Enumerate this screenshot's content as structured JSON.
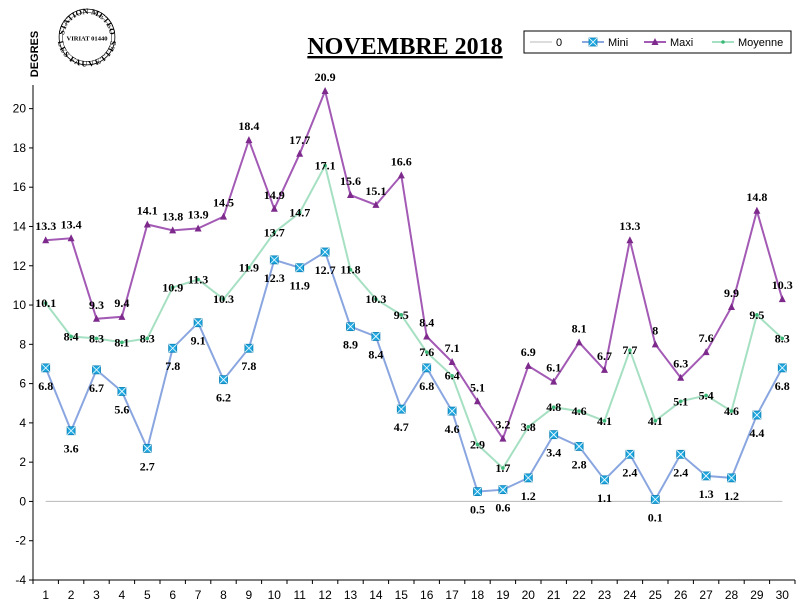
{
  "stamp": {
    "ring_top": "STATION METEO",
    "center": "VIRIAT 01440",
    "ring_bottom": "LES FAUVETTES"
  },
  "chart_data": {
    "type": "line",
    "title": "NOVEMBRE 2018",
    "ylabel": "DEGRES",
    "xlabel": "",
    "ylim": [
      -4,
      21
    ],
    "yticks": [
      -4,
      -2,
      0,
      2,
      4,
      6,
      8,
      10,
      12,
      14,
      16,
      18,
      20
    ],
    "x": [
      1,
      2,
      3,
      4,
      5,
      6,
      7,
      8,
      9,
      10,
      11,
      12,
      13,
      14,
      15,
      16,
      17,
      18,
      19,
      20,
      21,
      22,
      23,
      24,
      25,
      26,
      27,
      28,
      29,
      30
    ],
    "grid": false,
    "legend_position": "top-right",
    "legend": [
      "0",
      "Mini",
      "Maxi",
      "Moyenne"
    ],
    "series": [
      {
        "name": "0",
        "color": "#b8b8b8",
        "values": [
          0,
          0,
          0,
          0,
          0,
          0,
          0,
          0,
          0,
          0,
          0,
          0,
          0,
          0,
          0,
          0,
          0,
          0,
          0,
          0,
          0,
          0,
          0,
          0,
          0,
          0,
          0,
          0,
          0,
          0
        ]
      },
      {
        "name": "Mini",
        "color": "#1fa8e0",
        "line_color": "#8aa6e0",
        "marker": "square",
        "values": [
          6.8,
          3.6,
          6.7,
          5.6,
          2.7,
          7.8,
          9.1,
          6.2,
          7.8,
          12.3,
          11.9,
          12.7,
          8.9,
          8.4,
          4.7,
          6.8,
          4.6,
          0.5,
          0.6,
          1.2,
          3.4,
          2.8,
          1.1,
          2.4,
          0.1,
          2.4,
          1.3,
          1.2,
          4.4,
          6.8
        ]
      },
      {
        "name": "Maxi",
        "color": "#7d2a8c",
        "line_color": "#a35ab5",
        "marker": "triangle",
        "values": [
          13.3,
          13.4,
          9.3,
          9.4,
          14.1,
          13.8,
          13.9,
          14.5,
          18.4,
          14.9,
          17.7,
          20.9,
          15.6,
          15.1,
          16.6,
          8.4,
          7.1,
          5.1,
          3.2,
          6.9,
          6.1,
          8.1,
          6.7,
          13.3,
          8,
          6.3,
          7.6,
          9.9,
          14.8,
          10.3
        ]
      },
      {
        "name": "Moyenne",
        "color": "#3cb878",
        "line_color": "#a6e0c2",
        "marker": "dot",
        "values": [
          10.1,
          8.4,
          8.3,
          8.1,
          8.3,
          10.9,
          11.3,
          10.3,
          11.9,
          13.7,
          14.7,
          17.1,
          11.8,
          10.3,
          9.5,
          7.6,
          6.4,
          2.9,
          1.7,
          3.8,
          4.8,
          4.6,
          4.1,
          7.7,
          4.1,
          5.1,
          5.4,
          4.6,
          9.5,
          8.3
        ]
      }
    ]
  }
}
